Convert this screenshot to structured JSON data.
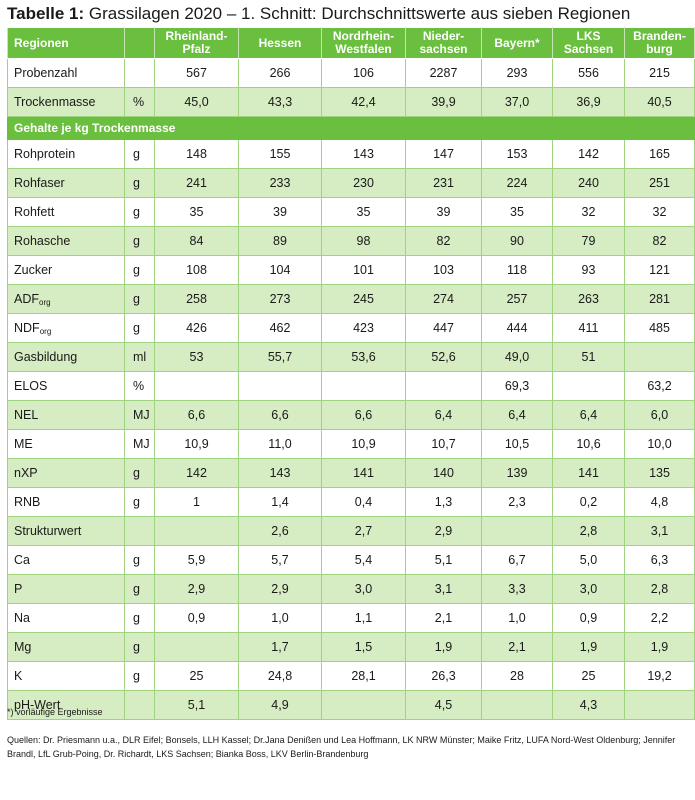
{
  "title": {
    "prefix": "Tabelle 1:",
    "text": " Grassilagen 2020 – 1. Schnitt: Durchschnittswerte aus sieben Regionen"
  },
  "header": {
    "first": "Regionen",
    "regions": [
      "Rheinland-\nPfalz",
      "Hessen",
      "Nordrhein-\nWestfalen",
      "Nieder-\nsachsen",
      "Bayern*",
      "LKS\nSachsen",
      "Branden-\nburg"
    ]
  },
  "top_rows": [
    {
      "label": "Probenzahl",
      "unit": "",
      "values": [
        "567",
        "266",
        "106",
        "2287",
        "293",
        "556",
        "215"
      ]
    },
    {
      "label": "Trockenmasse",
      "unit": "%",
      "values": [
        "45,0",
        "43,3",
        "42,4",
        "39,9",
        "37,0",
        "36,9",
        "40,5"
      ]
    }
  ],
  "section_label": "Gehalte je kg Trockenmasse",
  "rows": [
    {
      "label": "Rohprotein",
      "unit": "g",
      "values": [
        "148",
        "155",
        "143",
        "147",
        "153",
        "142",
        "165"
      ]
    },
    {
      "label": "Rohfaser",
      "unit": "g",
      "values": [
        "241",
        "233",
        "230",
        "231",
        "224",
        "240",
        "251"
      ]
    },
    {
      "label": "Rohfett",
      "unit": "g",
      "values": [
        "35",
        "39",
        "35",
        "39",
        "35",
        "32",
        "32"
      ]
    },
    {
      "label": "Rohasche",
      "unit": "g",
      "values": [
        "84",
        "89",
        "98",
        "82",
        "90",
        "79",
        "82"
      ]
    },
    {
      "label": "Zucker",
      "unit": "g",
      "values": [
        "108",
        "104",
        "101",
        "103",
        "118",
        "93",
        "121"
      ]
    },
    {
      "label": "ADF",
      "sub": "org",
      "unit": "g",
      "values": [
        "258",
        "273",
        "245",
        "274",
        "257",
        "263",
        "281"
      ]
    },
    {
      "label": "NDF",
      "sub": "org",
      "unit": "g",
      "values": [
        "426",
        "462",
        "423",
        "447",
        "444",
        "411",
        "485"
      ]
    },
    {
      "label": "Gasbildung",
      "unit": "ml",
      "values": [
        "53",
        "55,7",
        "53,6",
        "52,6",
        "49,0",
        "51",
        ""
      ]
    },
    {
      "label": "ELOS",
      "unit": "%",
      "values": [
        "",
        "",
        "",
        "",
        "69,3",
        "",
        "63,2"
      ]
    },
    {
      "label": "NEL",
      "unit": "MJ",
      "values": [
        "6,6",
        "6,6",
        "6,6",
        "6,4",
        "6,4",
        "6,4",
        "6,0"
      ]
    },
    {
      "label": "ME",
      "unit": "MJ",
      "values": [
        "10,9",
        "11,0",
        "10,9",
        "10,7",
        "10,5",
        "10,6",
        "10,0"
      ]
    },
    {
      "label": "nXP",
      "unit": "g",
      "values": [
        "142",
        "143",
        "141",
        "140",
        "139",
        "141",
        "135"
      ]
    },
    {
      "label": "RNB",
      "unit": "g",
      "values": [
        "1",
        "1,4",
        "0,4",
        "1,3",
        "2,3",
        "0,2",
        "4,8"
      ]
    },
    {
      "label": "Strukturwert",
      "unit": "",
      "values": [
        "",
        "2,6",
        "2,7",
        "2,9",
        "",
        "2,8",
        "3,1"
      ]
    },
    {
      "label": "Ca",
      "unit": "g",
      "values": [
        "5,9",
        "5,7",
        "5,4",
        "5,1",
        "6,7",
        "5,0",
        "6,3"
      ]
    },
    {
      "label": "P",
      "unit": "g",
      "values": [
        "2,9",
        "2,9",
        "3,0",
        "3,1",
        "3,3",
        "3,0",
        "2,8"
      ]
    },
    {
      "label": "Na",
      "unit": "g",
      "values": [
        "0,9",
        "1,0",
        "1,1",
        "2,1",
        "1,0",
        "0,9",
        "2,2"
      ]
    },
    {
      "label": "Mg",
      "unit": "g",
      "values": [
        "",
        "1,7",
        "1,5",
        "1,9",
        "2,1",
        "1,9",
        "1,9"
      ]
    },
    {
      "label": "K",
      "unit": "g",
      "values": [
        "25",
        "24,8",
        "28,1",
        "26,3",
        "28",
        "25",
        "19,2"
      ]
    },
    {
      "label": "pH-Wert",
      "unit": "",
      "values": [
        "5,1",
        "4,9",
        "",
        "4,5",
        "",
        "4,3",
        ""
      ]
    }
  ],
  "footnote": "*) vorläufige Ergebnisse",
  "sources": "Quellen: Dr. Priesmann u.a., DLR Eifel; Bonsels, LLH Kassel; Dr.Jana Denißen und Lea Hoffmann, LK NRW Münster; Maike Fritz, LUFA Nord-West Oldenburg; Jennifer Brandl, LfL Grub-Poing, Dr. Richardt, LKS Sachsen;  Bianka Boss, LKV Berlin-Brandenburg",
  "colors": {
    "header_green": "#6abf3e",
    "row_green": "#d6ecc2",
    "grid": "#9fd37f"
  }
}
